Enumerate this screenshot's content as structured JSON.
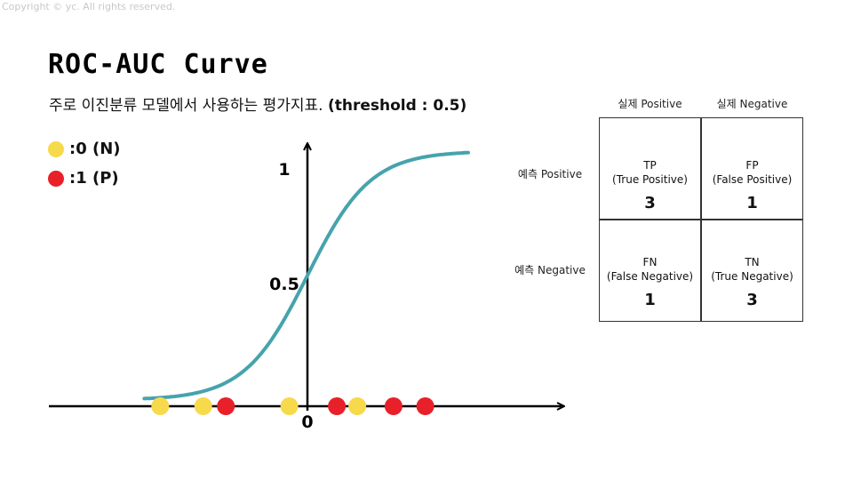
{
  "copyright": "Copyright © yc. All rights reserved.",
  "title": "ROC-AUC Curve",
  "subtitle": {
    "text": "주로 이진분류 모델에서 사용하는 평가지표.",
    "threshold": "(threshold : 0.5)"
  },
  "legend": [
    {
      "label": ":0 (N)",
      "color": "#f7d94c"
    },
    {
      "label": ":1 (P)",
      "color": "#e8202a"
    }
  ],
  "plot": {
    "y_tick_1": "1",
    "y_tick_half": "0.5",
    "origin_label": "0",
    "curve_color": "#46a3ad",
    "points": [
      {
        "x": -6.5,
        "class": 0
      },
      {
        "x": -4.6,
        "class": 0
      },
      {
        "x": -3.6,
        "class": 1
      },
      {
        "x": -0.8,
        "class": 0
      },
      {
        "x": 1.3,
        "class": 1
      },
      {
        "x": 2.2,
        "class": 0
      },
      {
        "x": 3.8,
        "class": 1
      },
      {
        "x": 5.2,
        "class": 1
      }
    ]
  },
  "matrix": {
    "col_headers": [
      "실제 Positive",
      "실제 Negative"
    ],
    "row_headers": [
      "예측 Positive",
      "예측 Negative"
    ],
    "cells": [
      {
        "abbr": "TP",
        "full": "(True Positive)",
        "count": "3"
      },
      {
        "abbr": "FP",
        "full": "(False Positive)",
        "count": "1"
      },
      {
        "abbr": "FN",
        "full": "(False Negative)",
        "count": "1"
      },
      {
        "abbr": "TN",
        "full": "(True Negative)",
        "count": "3"
      }
    ]
  }
}
